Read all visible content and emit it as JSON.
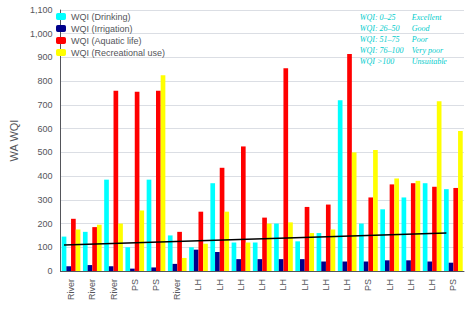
{
  "chart_data": {
    "type": "bar",
    "categories": [
      "River",
      "River",
      "River",
      "PS",
      "PS",
      "River",
      "LH",
      "LH",
      "LH",
      "LH",
      "LH",
      "LH",
      "LH",
      "LH",
      "PS",
      "LH",
      "LH",
      "LH",
      "PS"
    ],
    "series": [
      {
        "name": "WQI (Drinking)",
        "color": "#00FFFF",
        "values": [
          145,
          165,
          385,
          100,
          385,
          150,
          100,
          370,
          120,
          120,
          200,
          125,
          160,
          720,
          200,
          260,
          310,
          370,
          345
        ]
      },
      {
        "name": "WQI (Irrigation)",
        "color": "#00008B",
        "values": [
          20,
          25,
          20,
          10,
          15,
          30,
          90,
          80,
          50,
          50,
          50,
          50,
          40,
          40,
          40,
          45,
          45,
          40,
          35
        ]
      },
      {
        "name": "WQI (Aquatic life)",
        "color": "#FF0000",
        "values": [
          220,
          185,
          760,
          755,
          760,
          165,
          250,
          435,
          525,
          225,
          855,
          270,
          280,
          915,
          310,
          365,
          370,
          355,
          350
        ]
      },
      {
        "name": "WQI (Recreational use)",
        "color": "#FFFF00",
        "values": [
          175,
          195,
          200,
          255,
          825,
          55,
          115,
          250,
          120,
          200,
          205,
          160,
          175,
          500,
          510,
          390,
          380,
          715,
          590
        ]
      }
    ],
    "trend_line": [
      110,
      160
    ],
    "ylabel": "WA WQI",
    "ylim": [
      0,
      1100
    ],
    "yticks": [
      0,
      100,
      200,
      300,
      400,
      500,
      600,
      700,
      800,
      900,
      1000,
      1100
    ],
    "grid": true,
    "legend": "upper left",
    "annotations": {
      "color": "#00CCCC",
      "texts": [
        [
          "WQI: 0–25",
          "Excellent"
        ],
        [
          "WQI: 26–50",
          "Good"
        ],
        [
          "WQI: 51–75",
          "Poor"
        ],
        [
          "WQI: 76–100",
          "Very poor"
        ],
        [
          "WQI >100",
          "Unsuitable"
        ]
      ]
    }
  }
}
